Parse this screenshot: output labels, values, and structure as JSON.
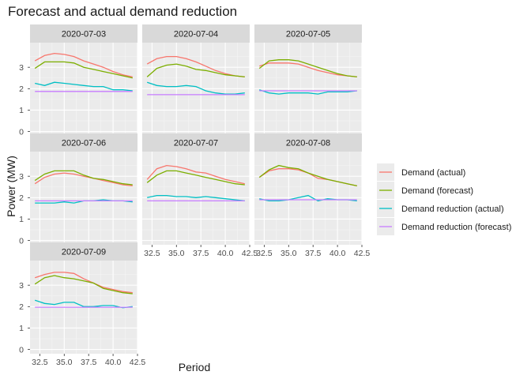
{
  "chart_data": {
    "type": "line",
    "title": "Forecast and actual demand reduction",
    "xlabel": "Period",
    "ylabel": "Power (MW)",
    "xlim": [
      31.5,
      42.5
    ],
    "ylim": [
      -0.2,
      4.15
    ],
    "x_ticks": [
      "32.5",
      "35.0",
      "37.5",
      "40.0",
      "42.5"
    ],
    "x_tick_values": [
      32.5,
      35.0,
      37.5,
      40.0,
      42.5
    ],
    "y_ticks": [
      "0",
      "1",
      "2",
      "3"
    ],
    "y_tick_values": [
      0,
      1,
      2,
      3
    ],
    "grid": true,
    "legend_position": "right",
    "x": [
      32,
      33,
      34,
      35,
      36,
      37,
      38,
      39,
      40,
      41,
      42
    ],
    "series_meta": [
      {
        "name": "Demand (actual)",
        "color": "#F8766D"
      },
      {
        "name": "Demand (forecast)",
        "color": "#7CAE00"
      },
      {
        "name": "Demand reduction (actual)",
        "color": "#00BFC4"
      },
      {
        "name": "Demand reduction (forecast)",
        "color": "#C77CFF"
      }
    ],
    "facets": [
      {
        "label": "2020-07-03",
        "series": [
          [
            3.3,
            3.55,
            3.65,
            3.6,
            3.5,
            3.3,
            3.15,
            3.0,
            2.8,
            2.65,
            2.55
          ],
          [
            2.95,
            3.25,
            3.25,
            3.25,
            3.2,
            3.0,
            2.9,
            2.8,
            2.7,
            2.6,
            2.5
          ],
          [
            2.25,
            2.15,
            2.3,
            2.25,
            2.2,
            2.15,
            2.1,
            2.1,
            1.95,
            1.95,
            1.9
          ],
          [
            1.87,
            1.87,
            1.87,
            1.87,
            1.87,
            1.87,
            1.87,
            1.87,
            1.87,
            1.87,
            1.87
          ]
        ]
      },
      {
        "label": "2020-07-04",
        "series": [
          [
            3.15,
            3.4,
            3.5,
            3.5,
            3.4,
            3.25,
            3.05,
            2.85,
            2.7,
            2.6,
            2.55
          ],
          [
            2.55,
            2.95,
            3.1,
            3.15,
            3.05,
            2.9,
            2.85,
            2.75,
            2.65,
            2.6,
            2.55
          ],
          [
            2.3,
            2.15,
            2.1,
            2.1,
            2.15,
            2.1,
            1.9,
            1.8,
            1.75,
            1.75,
            1.8
          ],
          [
            1.72,
            1.72,
            1.72,
            1.72,
            1.72,
            1.72,
            1.72,
            1.72,
            1.72,
            1.72,
            1.72
          ]
        ]
      },
      {
        "label": "2020-07-05",
        "series": [
          [
            3.05,
            3.2,
            3.2,
            3.2,
            3.15,
            3.0,
            2.85,
            2.75,
            2.65,
            2.6,
            2.55
          ],
          [
            2.95,
            3.3,
            3.35,
            3.35,
            3.3,
            3.15,
            3.0,
            2.85,
            2.7,
            2.6,
            2.55
          ],
          [
            1.95,
            1.8,
            1.75,
            1.8,
            1.8,
            1.8,
            1.75,
            1.85,
            1.85,
            1.85,
            1.9
          ],
          [
            1.9,
            1.9,
            1.9,
            1.9,
            1.9,
            1.9,
            1.9,
            1.9,
            1.9,
            1.9,
            1.9
          ]
        ]
      },
      {
        "label": "2020-07-06",
        "series": [
          [
            2.65,
            2.95,
            3.1,
            3.15,
            3.1,
            3.0,
            2.9,
            2.8,
            2.7,
            2.6,
            2.55
          ],
          [
            2.8,
            3.1,
            3.25,
            3.25,
            3.25,
            3.05,
            2.9,
            2.85,
            2.75,
            2.65,
            2.6
          ],
          [
            1.75,
            1.75,
            1.75,
            1.8,
            1.75,
            1.85,
            1.85,
            1.9,
            1.85,
            1.85,
            1.8
          ],
          [
            1.85,
            1.85,
            1.85,
            1.85,
            1.85,
            1.85,
            1.85,
            1.85,
            1.85,
            1.85,
            1.85
          ]
        ]
      },
      {
        "label": "2020-07-07",
        "series": [
          [
            2.85,
            3.35,
            3.5,
            3.45,
            3.35,
            3.2,
            3.15,
            3.0,
            2.85,
            2.75,
            2.65
          ],
          [
            2.7,
            3.05,
            3.25,
            3.25,
            3.15,
            3.05,
            2.95,
            2.85,
            2.75,
            2.65,
            2.6
          ],
          [
            2.0,
            2.1,
            2.1,
            2.05,
            2.05,
            2.0,
            2.05,
            2.0,
            1.95,
            1.9,
            1.85
          ],
          [
            1.85,
            1.85,
            1.85,
            1.85,
            1.85,
            1.85,
            1.85,
            1.85,
            1.85,
            1.85,
            1.85
          ]
        ]
      },
      {
        "label": "2020-07-08",
        "series": [
          [
            2.95,
            3.25,
            3.35,
            3.35,
            3.3,
            3.15,
            2.9,
            2.85,
            2.75,
            2.65,
            2.55
          ],
          [
            2.95,
            3.3,
            3.5,
            3.4,
            3.35,
            3.15,
            3.0,
            2.85,
            2.75,
            2.65,
            2.55
          ],
          [
            1.95,
            1.85,
            1.85,
            1.9,
            2.0,
            2.1,
            1.85,
            1.95,
            1.9,
            1.9,
            1.85
          ],
          [
            1.9,
            1.9,
            1.9,
            1.9,
            1.9,
            1.9,
            1.9,
            1.9,
            1.9,
            1.9,
            1.9
          ]
        ]
      },
      {
        "label": "2020-07-09",
        "series": [
          [
            3.35,
            3.5,
            3.6,
            3.6,
            3.55,
            3.3,
            3.1,
            2.9,
            2.8,
            2.7,
            2.65
          ],
          [
            3.05,
            3.35,
            3.45,
            3.35,
            3.3,
            3.2,
            3.1,
            2.85,
            2.75,
            2.65,
            2.6
          ],
          [
            2.3,
            2.15,
            2.1,
            2.2,
            2.2,
            2.0,
            2.0,
            2.05,
            2.05,
            1.95,
            2.0
          ],
          [
            1.97,
            1.97,
            1.97,
            1.97,
            1.97,
            1.97,
            1.97,
            1.97,
            1.97,
            1.97,
            1.97
          ]
        ]
      }
    ]
  }
}
